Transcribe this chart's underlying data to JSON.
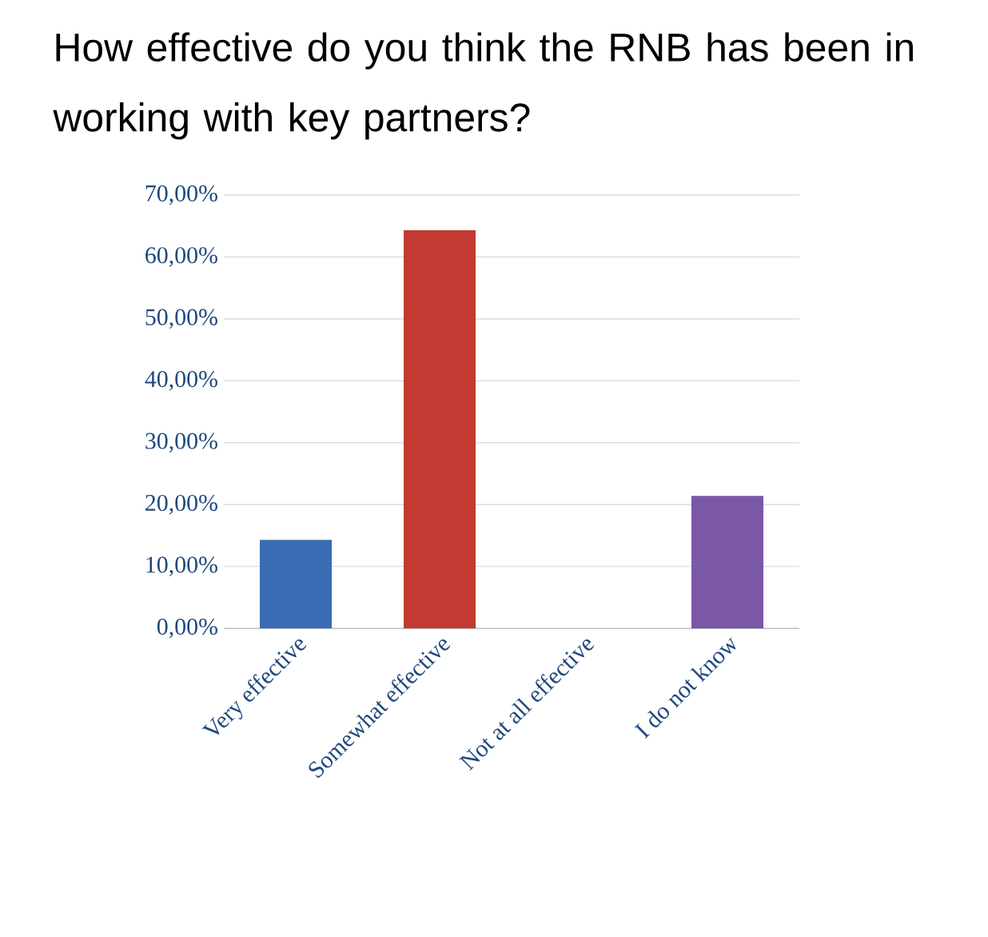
{
  "chart_data": {
    "type": "bar",
    "title": "How effective do you think the RNB has been in working with key partners?",
    "categories": [
      "Very effective",
      "Somewhat effective",
      "Not at all effective",
      "I do not know"
    ],
    "values": [
      14.3,
      64.3,
      0,
      21.4
    ],
    "colors": [
      "#3a6db3",
      "#c23a32",
      "#7a58a5",
      "#7a58a5"
    ],
    "ylim": [
      0,
      70
    ],
    "yticks": [
      {
        "value": 0,
        "label": "0,00%"
      },
      {
        "value": 10,
        "label": "10,00%"
      },
      {
        "value": 20,
        "label": "20,00%"
      },
      {
        "value": 30,
        "label": "30,00%"
      },
      {
        "value": 40,
        "label": "40,00%"
      },
      {
        "value": 50,
        "label": "50,00%"
      },
      {
        "value": 60,
        "label": "60,00%"
      },
      {
        "value": 70,
        "label": "70,00%"
      }
    ],
    "grid": "y"
  }
}
